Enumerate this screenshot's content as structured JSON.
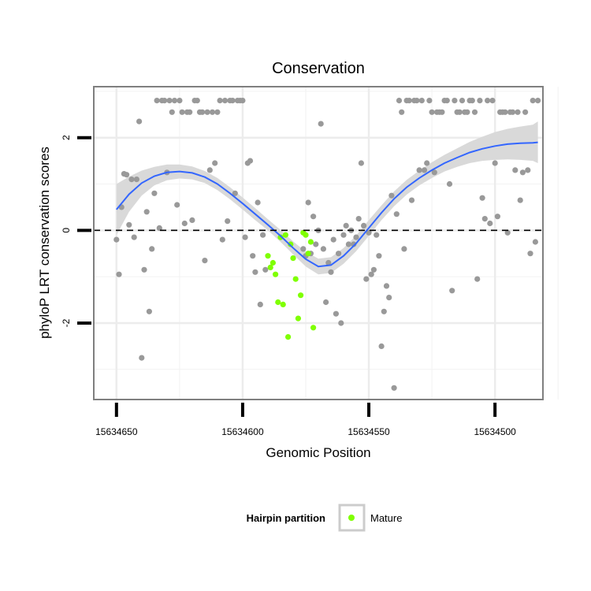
{
  "chart_data": {
    "type": "scatter",
    "title": "Conservation",
    "xlabel": "Genomic Position",
    "ylabel": "phyloP LRT conservation scores",
    "x_reversed": true,
    "xlim": [
      15634659,
      15634481
    ],
    "ylim": [
      -3.65,
      3.1
    ],
    "x_ticks": [
      15634650,
      15634600,
      15634550,
      15634500
    ],
    "x_tick_labels": [
      "15634650",
      "15634600",
      "15634550",
      "15634500"
    ],
    "y_ticks": [
      2,
      0,
      -2
    ],
    "y_tick_labels": [
      "2",
      "0",
      "-2"
    ],
    "reference_line": {
      "y": 0,
      "style": "dashed"
    },
    "grid": true,
    "background": "#ffffff",
    "colors": {
      "default": "#999999",
      "mature": "#7FFF00",
      "smooth": "#3366FF",
      "ribbon": "#D9D9D9"
    },
    "legend": {
      "title": "Hairpin partition",
      "entries": [
        "Mature"
      ],
      "position": "bottom"
    },
    "series": [
      {
        "name": "",
        "color": "#999999",
        "points": [
          [
            15634650,
            -0.2
          ],
          [
            15634649,
            -0.95
          ],
          [
            15634648,
            0.5
          ],
          [
            15634647,
            1.22
          ],
          [
            15634646,
            1.2
          ],
          [
            15634645,
            0.12
          ],
          [
            15634644,
            1.1
          ],
          [
            15634643,
            -0.15
          ],
          [
            15634642,
            1.1
          ],
          [
            15634641,
            2.35
          ],
          [
            15634640,
            -2.75
          ],
          [
            15634639,
            -0.85
          ],
          [
            15634638,
            0.4
          ],
          [
            15634637,
            -1.75
          ],
          [
            15634636,
            -0.4
          ],
          [
            15634635,
            0.8
          ],
          [
            15634634,
            2.8
          ],
          [
            15634633,
            0.05
          ],
          [
            15634632,
            2.8
          ],
          [
            15634631,
            2.8
          ],
          [
            15634630,
            1.25
          ],
          [
            15634629,
            2.8
          ],
          [
            15634628,
            2.55
          ],
          [
            15634627,
            2.8
          ],
          [
            15634626,
            0.55
          ],
          [
            15634625,
            2.8
          ],
          [
            15634624,
            2.55
          ],
          [
            15634623,
            0.15
          ],
          [
            15634622,
            2.55
          ],
          [
            15634621,
            2.55
          ],
          [
            15634620,
            0.22
          ],
          [
            15634619,
            2.8
          ],
          [
            15634618,
            2.8
          ],
          [
            15634617,
            2.55
          ],
          [
            15634616,
            2.55
          ],
          [
            15634615,
            -0.65
          ],
          [
            15634614,
            2.55
          ],
          [
            15634613,
            1.3
          ],
          [
            15634612,
            2.55
          ],
          [
            15634611,
            1.45
          ],
          [
            15634610,
            2.55
          ],
          [
            15634609,
            2.8
          ],
          [
            15634608,
            -0.2
          ],
          [
            15634607,
            2.8
          ],
          [
            15634606,
            0.2
          ],
          [
            15634605,
            2.8
          ],
          [
            15634604,
            2.8
          ],
          [
            15634603,
            0.8
          ],
          [
            15634602,
            2.8
          ],
          [
            15634601,
            2.8
          ],
          [
            15634600,
            2.8
          ],
          [
            15634599,
            -0.15
          ],
          [
            15634598,
            1.45
          ],
          [
            15634597,
            1.5
          ],
          [
            15634596,
            -0.55
          ],
          [
            15634595,
            -0.9
          ],
          [
            15634594,
            0.6
          ],
          [
            15634593,
            -1.6
          ],
          [
            15634592,
            -0.1
          ],
          [
            15634591,
            -0.85
          ],
          [
            15634576,
            -0.4
          ],
          [
            15634575,
            -0.55
          ],
          [
            15634574,
            0.6
          ],
          [
            15634573,
            -0.5
          ],
          [
            15634572,
            0.3
          ],
          [
            15634571,
            -0.3
          ],
          [
            15634570,
            0.0
          ],
          [
            15634569,
            2.3
          ],
          [
            15634568,
            -0.4
          ],
          [
            15634567,
            -1.55
          ],
          [
            15634566,
            -0.7
          ],
          [
            15634565,
            -0.9
          ],
          [
            15634564,
            -0.2
          ],
          [
            15634563,
            -1.8
          ],
          [
            15634562,
            -0.5
          ],
          [
            15634561,
            -2.0
          ],
          [
            15634560,
            -0.1
          ],
          [
            15634559,
            0.1
          ],
          [
            15634558,
            -0.3
          ],
          [
            15634557,
            0.0
          ],
          [
            15634556,
            -0.3
          ],
          [
            15634555,
            -0.15
          ],
          [
            15634554,
            0.25
          ],
          [
            15634553,
            1.45
          ],
          [
            15634552,
            0.1
          ],
          [
            15634551,
            -1.05
          ],
          [
            15634550,
            -0.05
          ],
          [
            15634549,
            -0.95
          ],
          [
            15634548,
            -0.85
          ],
          [
            15634547,
            -0.1
          ],
          [
            15634546,
            -0.55
          ],
          [
            15634545,
            -2.5
          ],
          [
            15634544,
            -1.75
          ],
          [
            15634543,
            -1.2
          ],
          [
            15634542,
            -1.45
          ],
          [
            15634541,
            0.75
          ],
          [
            15634540,
            -3.4
          ],
          [
            15634539,
            0.35
          ],
          [
            15634538,
            2.8
          ],
          [
            15634537,
            2.55
          ],
          [
            15634536,
            -0.4
          ],
          [
            15634535,
            2.8
          ],
          [
            15634534,
            2.8
          ],
          [
            15634533,
            0.65
          ],
          [
            15634532,
            2.8
          ],
          [
            15634531,
            2.8
          ],
          [
            15634530,
            1.3
          ],
          [
            15634529,
            2.8
          ],
          [
            15634528,
            1.3
          ],
          [
            15634527,
            1.45
          ],
          [
            15634526,
            2.8
          ],
          [
            15634525,
            2.55
          ],
          [
            15634524,
            1.25
          ],
          [
            15634523,
            2.55
          ],
          [
            15634522,
            2.55
          ],
          [
            15634521,
            2.55
          ],
          [
            15634520,
            2.8
          ],
          [
            15634519,
            2.8
          ],
          [
            15634518,
            1.0
          ],
          [
            15634517,
            -1.3
          ],
          [
            15634516,
            2.8
          ],
          [
            15634515,
            2.55
          ],
          [
            15634514,
            2.55
          ],
          [
            15634513,
            2.8
          ],
          [
            15634512,
            2.55
          ],
          [
            15634511,
            2.55
          ],
          [
            15634510,
            2.8
          ],
          [
            15634509,
            2.8
          ],
          [
            15634508,
            2.55
          ],
          [
            15634507,
            -1.05
          ],
          [
            15634506,
            2.8
          ],
          [
            15634505,
            0.7
          ],
          [
            15634504,
            0.25
          ],
          [
            15634503,
            2.8
          ],
          [
            15634502,
            0.15
          ],
          [
            15634501,
            2.8
          ],
          [
            15634500,
            1.45
          ],
          [
            15634499,
            0.3
          ],
          [
            15634498,
            2.55
          ],
          [
            15634497,
            2.55
          ],
          [
            15634496,
            2.55
          ],
          [
            15634495,
            -0.05
          ],
          [
            15634494,
            2.55
          ],
          [
            15634493,
            2.55
          ],
          [
            15634492,
            1.3
          ],
          [
            15634491,
            2.55
          ],
          [
            15634490,
            0.65
          ],
          [
            15634489,
            1.25
          ],
          [
            15634488,
            2.55
          ],
          [
            15634487,
            1.3
          ],
          [
            15634486,
            -0.5
          ],
          [
            15634485,
            2.8
          ],
          [
            15634484,
            -0.25
          ],
          [
            15634483,
            2.8
          ]
        ]
      },
      {
        "name": "Mature",
        "color": "#7FFF00",
        "points": [
          [
            15634590,
            -0.55
          ],
          [
            15634589,
            -0.8
          ],
          [
            15634588,
            -0.7
          ],
          [
            15634587,
            -0.95
          ],
          [
            15634586,
            -1.55
          ],
          [
            15634585,
            -0.15
          ],
          [
            15634584,
            -1.6
          ],
          [
            15634583,
            -0.1
          ],
          [
            15634582,
            -2.3
          ],
          [
            15634581,
            -0.3
          ],
          [
            15634580,
            -0.6
          ],
          [
            15634579,
            -1.05
          ],
          [
            15634578,
            -1.9
          ],
          [
            15634577,
            -1.4
          ],
          [
            15634576,
            -0.05
          ],
          [
            15634575,
            -0.1
          ],
          [
            15634574,
            -0.5
          ],
          [
            15634573,
            -0.25
          ],
          [
            15634572,
            -2.1
          ]
        ]
      }
    ],
    "smooth": {
      "x": [
        15634650,
        15634645,
        15634640,
        15634635,
        15634630,
        15634625,
        15634620,
        15634615,
        15634610,
        15634605,
        15634600,
        15634595,
        15634590,
        15634585,
        15634580,
        15634575,
        15634570,
        15634565,
        15634560,
        15634555,
        15634550,
        15634545,
        15634540,
        15634535,
        15634530,
        15634525,
        15634520,
        15634515,
        15634510,
        15634505,
        15634500,
        15634495,
        15634490,
        15634485,
        15634483
      ],
      "y": [
        0.45,
        0.78,
        1.02,
        1.17,
        1.25,
        1.27,
        1.24,
        1.15,
        1.0,
        0.8,
        0.58,
        0.35,
        0.12,
        -0.12,
        -0.38,
        -0.62,
        -0.78,
        -0.75,
        -0.55,
        -0.28,
        0.05,
        0.38,
        0.68,
        0.93,
        1.13,
        1.3,
        1.45,
        1.57,
        1.68,
        1.76,
        1.82,
        1.86,
        1.88,
        1.89,
        1.9
      ],
      "lower": [
        -0.1,
        0.4,
        0.75,
        0.97,
        1.08,
        1.12,
        1.1,
        1.02,
        0.87,
        0.67,
        0.45,
        0.22,
        0.0,
        -0.25,
        -0.52,
        -0.78,
        -0.95,
        -0.92,
        -0.72,
        -0.45,
        -0.12,
        0.22,
        0.52,
        0.77,
        0.97,
        1.13,
        1.27,
        1.37,
        1.45,
        1.5,
        1.52,
        1.53,
        1.52,
        1.5,
        1.45
      ],
      "upper": [
        1.0,
        1.16,
        1.29,
        1.37,
        1.42,
        1.42,
        1.38,
        1.28,
        1.13,
        0.93,
        0.71,
        0.48,
        0.24,
        0.01,
        -0.24,
        -0.46,
        -0.61,
        -0.58,
        -0.38,
        -0.11,
        0.22,
        0.54,
        0.84,
        1.09,
        1.29,
        1.47,
        1.63,
        1.77,
        1.91,
        2.02,
        2.12,
        2.19,
        2.24,
        2.28,
        2.35
      ]
    }
  }
}
